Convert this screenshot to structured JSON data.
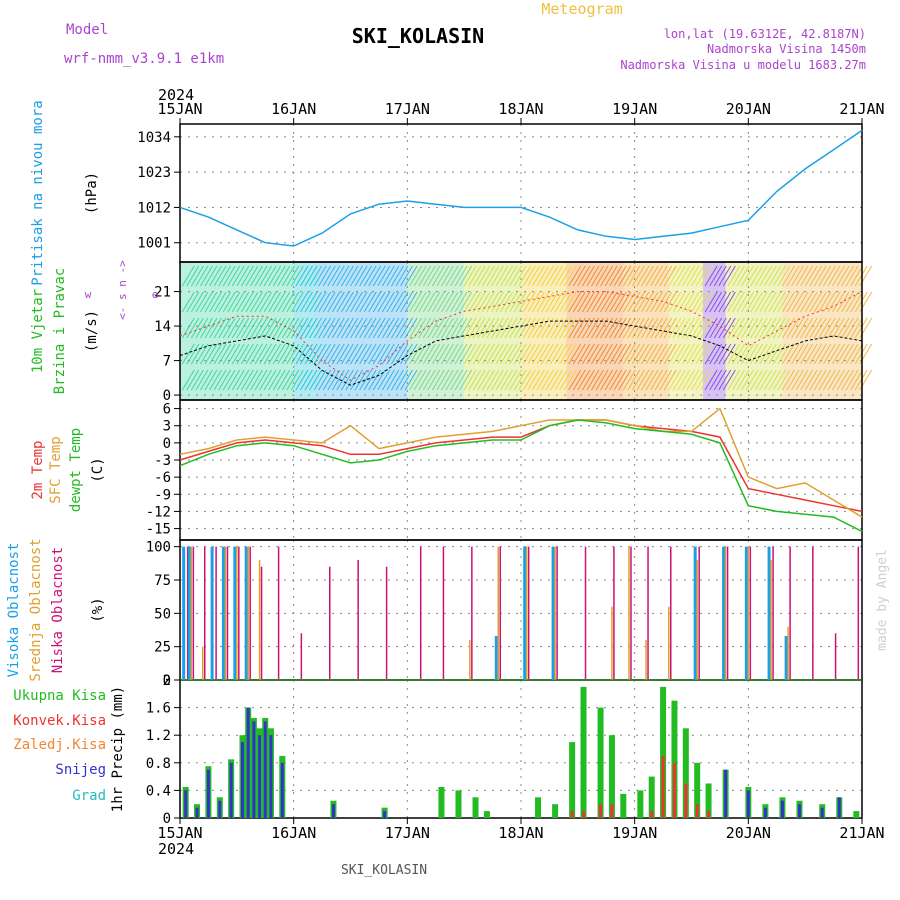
{
  "header": {
    "model_label": "Model",
    "model_name": "wrf-nmm_v3.9.1 e1km",
    "title": "SKI_KOLASIN",
    "meteogram_label": "Meteogram",
    "lonlat": "lon,lat (19.6312E, 42.8187N)",
    "elevation": "Nadmorska Visina 1450m",
    "model_elevation": "Nadmorska Visina u modelu 1683.27m",
    "footer_station": "SKI_KOLASIN",
    "watermark": "made by Angel"
  },
  "colors": {
    "pressure": "#1aa0e6",
    "temp2m": "#ee3333",
    "sfc_temp": "#e0a030",
    "dewpt": "#22bb22",
    "high_cloud": "#1aa0e6",
    "mid_cloud": "#e0a030",
    "low_cloud": "#cc1177",
    "total_precip": "#22bb22",
    "conv_precip": "#ee3333",
    "frozen_precip": "#ee8833",
    "snow": "#3333cc",
    "graupel": "#22bbbb",
    "model_purple": "#aa44cc",
    "meteogram_orange": "#f0c040"
  },
  "chart_data": [
    {
      "panel": "pressure",
      "type": "line",
      "x_axis": {
        "year": "2024",
        "ticks": [
          "15JAN",
          "16JAN",
          "17JAN",
          "18JAN",
          "19JAN",
          "20JAN",
          "21JAN"
        ]
      },
      "ylabel_lines": [
        "Pritisak na nivou mora",
        "(hPa)"
      ],
      "yticks": [
        1001,
        1012,
        1023,
        1034
      ],
      "ylim": [
        995,
        1038
      ],
      "grid": true,
      "x_days": [
        0,
        0.25,
        0.5,
        0.75,
        1,
        1.25,
        1.5,
        1.75,
        2,
        2.25,
        2.5,
        2.75,
        3,
        3.25,
        3.5,
        3.75,
        4,
        4.25,
        4.5,
        4.75,
        5,
        5.25,
        5.5,
        5.75,
        6
      ],
      "series": [
        {
          "values": [
            1012,
            1009,
            1005,
            1001,
            1000,
            1004,
            1010,
            1013,
            1014,
            1013,
            1012,
            1012,
            1012,
            1009,
            1005,
            1003,
            1002,
            1003,
            1004,
            1006,
            1008,
            1017,
            1024,
            1030,
            1036
          ]
        }
      ]
    },
    {
      "panel": "wind",
      "type": "line",
      "ylabel_lines": [
        "10m Vjetar",
        "Brzina i Pravac",
        "(m/s)"
      ],
      "direction_legend": [
        "w",
        "<-",
        "s",
        "n",
        "->",
        "e"
      ],
      "yticks": [
        0,
        7,
        14,
        21
      ],
      "ylim": [
        -1,
        27
      ],
      "grid": true,
      "x_days": [
        0,
        0.25,
        0.5,
        0.75,
        1,
        1.25,
        1.5,
        1.75,
        2,
        2.25,
        2.5,
        2.75,
        3,
        3.25,
        3.5,
        3.75,
        4,
        4.25,
        4.5,
        4.75,
        5,
        5.25,
        5.5,
        5.75,
        6
      ],
      "series": [
        {
          "values": [
            8,
            10,
            11,
            12,
            10,
            5,
            2,
            4,
            8,
            11,
            12,
            13,
            14,
            15,
            15,
            15,
            14,
            13,
            12,
            10,
            7,
            9,
            11,
            12,
            11
          ]
        },
        {
          "values": [
            12,
            14,
            16,
            16,
            13,
            7,
            3,
            6,
            11,
            15,
            17,
            18,
            19,
            20,
            21,
            21,
            20,
            19,
            17,
            14,
            10,
            13,
            16,
            18,
            21
          ]
        }
      ]
    },
    {
      "panel": "temperature",
      "type": "line",
      "ylabel_lines": [
        "2m Temp",
        "SFC Temp",
        "dewpt Temp",
        "(C)"
      ],
      "yticks": [
        6,
        3,
        0,
        -3,
        -6,
        -9,
        -12,
        -15
      ],
      "ylim": [
        -17,
        7.5
      ],
      "grid": true,
      "x_days": [
        0,
        0.25,
        0.5,
        0.75,
        1,
        1.25,
        1.5,
        1.75,
        2,
        2.25,
        2.5,
        2.75,
        3,
        3.25,
        3.5,
        3.75,
        4,
        4.25,
        4.5,
        4.75,
        5,
        5.25,
        5.5,
        5.75,
        6
      ],
      "series": [
        {
          "name": "2m Temp",
          "values": [
            -3,
            -1.5,
            0,
            0.5,
            0,
            -0.5,
            -2,
            -2,
            -1,
            0,
            0.5,
            1,
            1,
            3,
            4,
            4,
            3,
            2.5,
            2,
            1,
            -8,
            -9,
            -10,
            -11,
            -12
          ]
        },
        {
          "name": "SFC Temp",
          "values": [
            -2,
            -1,
            0.5,
            1,
            0.5,
            0,
            3,
            -1,
            0,
            1,
            1.5,
            2,
            3,
            4,
            4,
            4,
            3,
            2,
            2,
            6,
            -6,
            -8,
            -7,
            -10,
            -13
          ]
        },
        {
          "name": "dewpt Temp",
          "values": [
            -4,
            -2,
            -0.5,
            0,
            -0.5,
            -2,
            -3.5,
            -3,
            -1.5,
            -0.5,
            0,
            0.5,
            0.5,
            3,
            4,
            3.5,
            2.5,
            2,
            1.5,
            0,
            -11,
            -12,
            -12.5,
            -13,
            -15.5
          ]
        }
      ]
    },
    {
      "panel": "cloud",
      "type": "bar",
      "ylabel_lines": [
        "Visoka Oblacnost",
        "Srednja Oblacnost",
        "Niska Oblacnost",
        "(%)"
      ],
      "yticks": [
        0,
        25,
        50,
        75,
        100
      ],
      "ylim": [
        0,
        105
      ],
      "grid": true,
      "x_days": [
        0.05,
        0.1,
        0.2,
        0.3,
        0.4,
        0.5,
        0.6,
        0.7,
        0.85,
        1.05,
        1.3,
        1.55,
        1.8,
        2.1,
        2.3,
        2.55,
        2.8,
        3.05,
        3.3,
        3.55,
        3.8,
        3.95,
        4.1,
        4.3,
        4.55,
        4.8,
        5.0,
        5.2,
        5.35,
        5.55,
        5.75,
        5.95
      ],
      "series": [
        {
          "name": "Visoka Oblacnost",
          "values": [
            100,
            100,
            0,
            100,
            100,
            100,
            100,
            0,
            0,
            0,
            0,
            0,
            0,
            0,
            0,
            0,
            33,
            100,
            100,
            0,
            0,
            0,
            0,
            0,
            100,
            100,
            100,
            100,
            33,
            0,
            0,
            0
          ]
        },
        {
          "name": "Srednja Oblacnost",
          "values": [
            0,
            100,
            25,
            0,
            100,
            100,
            100,
            90,
            0,
            0,
            0,
            0,
            0,
            0,
            0,
            30,
            100,
            100,
            100,
            0,
            55,
            100,
            30,
            55,
            90,
            100,
            100,
            90,
            40,
            0,
            0,
            0
          ]
        },
        {
          "name": "Niska Oblacnost",
          "values": [
            100,
            100,
            100,
            100,
            100,
            100,
            100,
            85,
            100,
            35,
            85,
            90,
            85,
            100,
            100,
            100,
            100,
            100,
            100,
            100,
            100,
            100,
            100,
            100,
            100,
            100,
            100,
            100,
            100,
            100,
            35,
            100
          ]
        }
      ]
    },
    {
      "panel": "precip",
      "type": "bar",
      "ylabel_lines": [
        "1hr Precip (mm)"
      ],
      "legend": [
        "Ukupna Kisa",
        "Konvek.Kisa",
        "Zaledj.Kisa",
        "Snijeg",
        "Grad"
      ],
      "yticks": [
        0,
        0.4,
        0.8,
        1.2,
        1.6,
        2
      ],
      "ylim": [
        0,
        2
      ],
      "grid": true,
      "x_days": [
        0.05,
        0.15,
        0.25,
        0.35,
        0.45,
        0.55,
        0.6,
        0.65,
        0.7,
        0.75,
        0.8,
        0.9,
        1.35,
        1.8,
        2.3,
        2.45,
        2.6,
        2.7,
        3.15,
        3.3,
        3.45,
        3.55,
        3.7,
        3.8,
        3.9,
        4.05,
        4.15,
        4.25,
        4.35,
        4.45,
        4.55,
        4.65,
        4.8,
        5.0,
        5.15,
        5.3,
        5.45,
        5.65,
        5.8,
        5.95
      ],
      "series": [
        {
          "name": "Ukupna Kisa",
          "values": [
            0.45,
            0.2,
            0.75,
            0.3,
            0.85,
            1.2,
            1.6,
            1.45,
            1.3,
            1.45,
            1.3,
            0.9,
            0.25,
            0.15,
            0.45,
            0.4,
            0.3,
            0.1,
            0.3,
            0.2,
            1.1,
            1.9,
            1.6,
            1.2,
            0.35,
            0.4,
            0.6,
            1.9,
            1.7,
            1.3,
            0.8,
            0.5,
            0.7,
            0.45,
            0.2,
            0.3,
            0.25,
            0.2,
            0.3,
            0.1
          ]
        },
        {
          "name": "Konvek.Kisa",
          "values": [
            0,
            0,
            0,
            0,
            0,
            0,
            0,
            0,
            0,
            0,
            0,
            0,
            0,
            0,
            0,
            0,
            0,
            0,
            0,
            0,
            0.1,
            0.1,
            0.2,
            0.2,
            0,
            0,
            0.1,
            0.9,
            0.8,
            0.5,
            0.2,
            0.1,
            0,
            0,
            0,
            0,
            0,
            0,
            0,
            0
          ]
        },
        {
          "name": "Snijeg",
          "values": [
            0.4,
            0.15,
            0.7,
            0.25,
            0.8,
            1.1,
            1.6,
            1.4,
            1.2,
            1.4,
            1.2,
            0.8,
            0.2,
            0.1,
            0,
            0,
            0,
            0,
            0,
            0,
            0,
            0,
            0,
            0,
            0,
            0,
            0,
            0,
            0,
            0,
            0,
            0,
            0.7,
            0.4,
            0.15,
            0.25,
            0.2,
            0.15,
            0.3,
            0
          ]
        }
      ]
    }
  ]
}
